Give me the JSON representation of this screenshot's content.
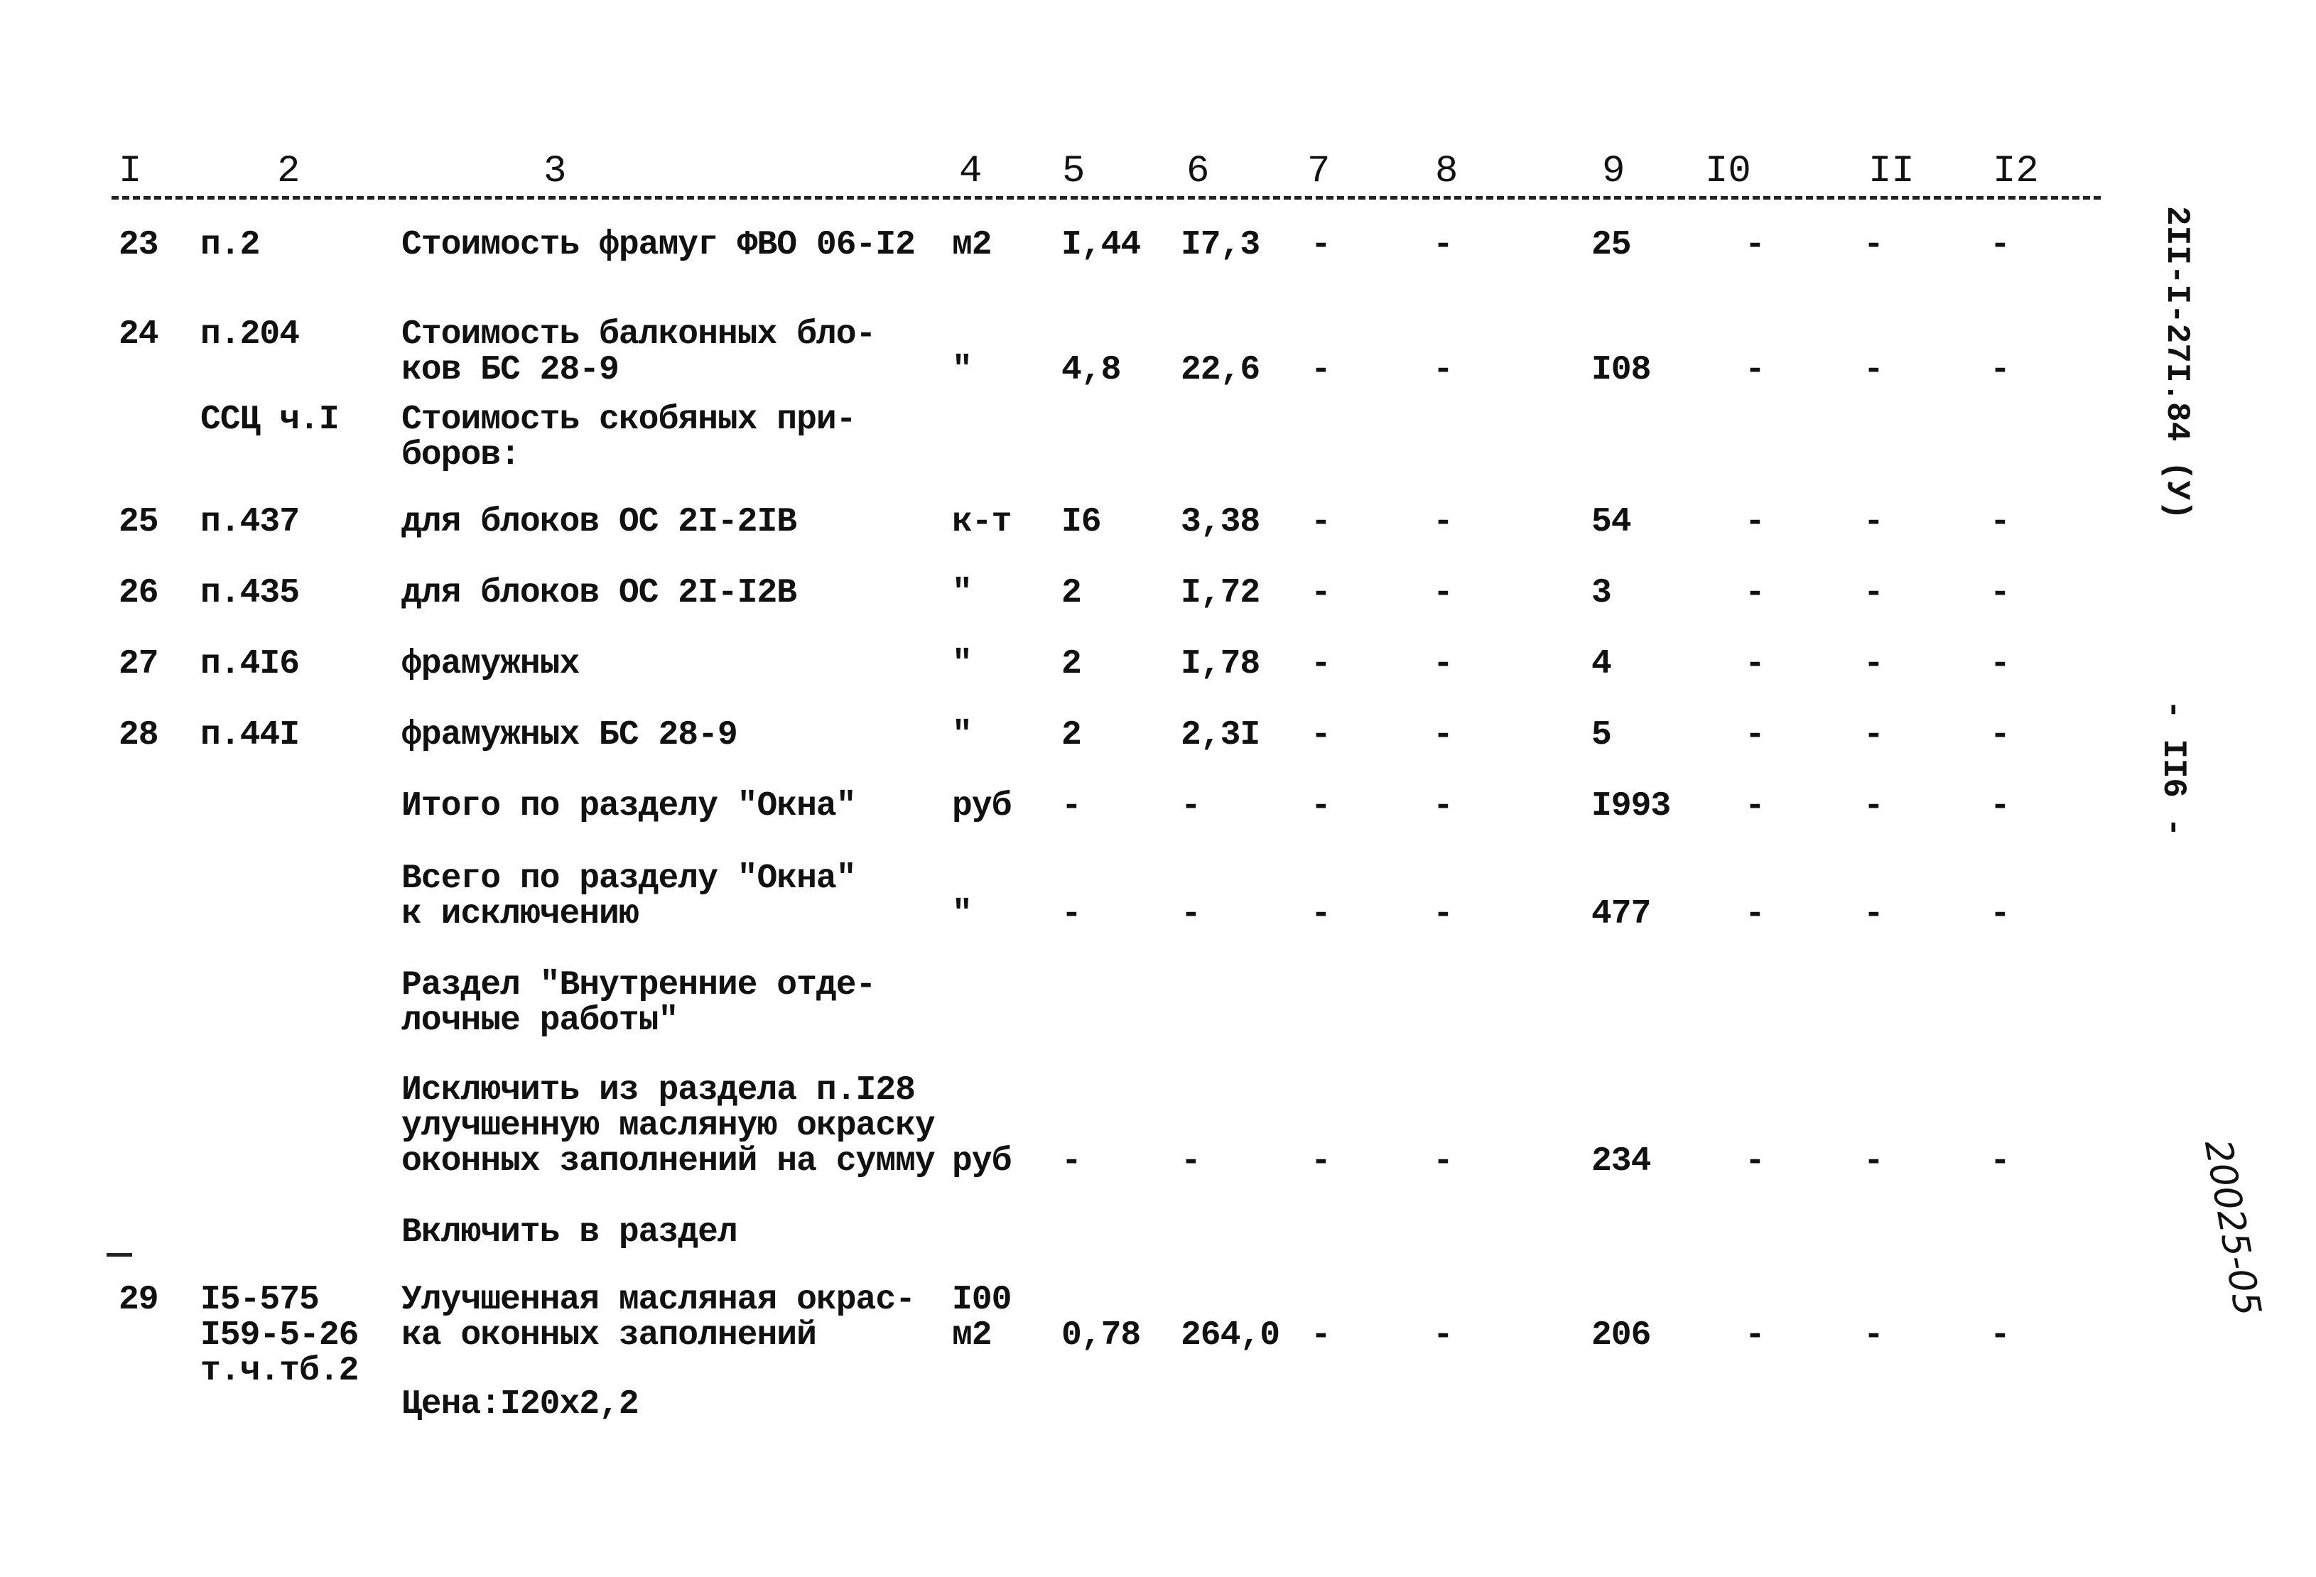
{
  "header": [
    "I",
    "2",
    "3",
    "4",
    "5",
    "6",
    "7",
    "8",
    "9",
    "I0",
    "II",
    "I2"
  ],
  "rows": [
    [
      "23",
      "п.2",
      "Стоимость фрамуг ФВО 06-I2",
      "м2",
      "I,44",
      "I7,3",
      "-",
      "-",
      "25",
      "-",
      "-",
      "-"
    ],
    [
      "24",
      "п.204",
      "Стоимость балконных бло-\nков БС 28-9",
      "\"",
      "4,8",
      "22,6",
      "-",
      "-",
      "I08",
      "-",
      "-",
      "-"
    ],
    [
      "",
      "ССЦ ч.I",
      "Стоимость скобяных при-\nборов:",
      "",
      "",
      "",
      "",
      "",
      "",
      "",
      "",
      ""
    ],
    [
      "25",
      "п.437",
      "для блоков ОС 2I-2IВ",
      "к-т",
      "I6",
      "3,38",
      "-",
      "-",
      "54",
      "-",
      "-",
      "-"
    ],
    [
      "26",
      "п.435",
      "для блоков ОС 2I-I2В",
      "\"",
      "2",
      "I,72",
      "-",
      "-",
      "3",
      "-",
      "-",
      "-"
    ],
    [
      "27",
      "п.4I6",
      "фрамужных",
      "\"",
      "2",
      "I,78",
      "-",
      "-",
      "4",
      "-",
      "-",
      "-"
    ],
    [
      "28",
      "п.44I",
      "фрамужных БС 28-9",
      "\"",
      "2",
      "2,3I",
      "-",
      "-",
      "5",
      "-",
      "-",
      "-"
    ],
    [
      "",
      "",
      "Итого по разделу \"Окна\"",
      "руб",
      "-",
      "-",
      "-",
      "-",
      "I993",
      "-",
      "-",
      "-"
    ],
    [
      "",
      "",
      "Всего по разделу \"Окна\"\nк исключению",
      "\"",
      "-",
      "-",
      "-",
      "-",
      "477",
      "-",
      "-",
      "-"
    ],
    [
      "",
      "",
      "Раздел \"Внутренние отде-\nлочные работы\"",
      "",
      "",
      "",
      "",
      "",
      "",
      "",
      "",
      ""
    ],
    [
      "",
      "",
      "Исключить из раздела п.I28\nулучшенную масляную окраску\nоконных заполнений на сумму",
      "руб",
      "-",
      "-",
      "-",
      "-",
      "234",
      "-",
      "-",
      "-"
    ],
    [
      "",
      "",
      "Включить в раздел",
      "",
      "",
      "",
      "",
      "",
      "",
      "",
      "",
      ""
    ],
    [
      "29",
      "I5-575\nI59-5-26\nт.ч.тб.2",
      "Улучшенная масляная окрас-\nка оконных заполнений",
      "I00\nм2",
      "0,78",
      "264,0",
      "-",
      "-",
      "206",
      "-",
      "-",
      "-"
    ],
    [
      "",
      "",
      "Цена:I20х2,2",
      "",
      "",
      "",
      "",
      "",
      "",
      "",
      "",
      ""
    ]
  ],
  "side": {
    "document_code": "2II-I-27I.84 (У)",
    "page_number": "- II6 -",
    "handwritten_number": "20025-05"
  }
}
